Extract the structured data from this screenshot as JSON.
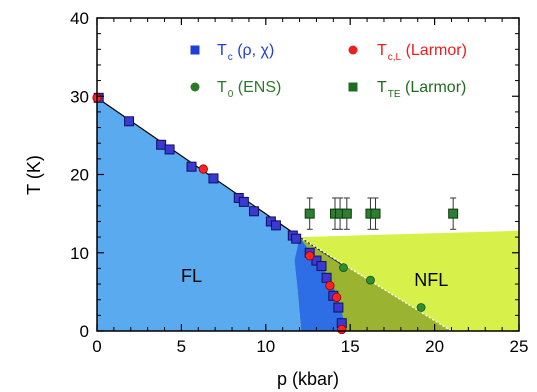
{
  "chart_data": {
    "type": "scatter",
    "xlabel": "p (kbar)",
    "ylabel": "T (K)",
    "xlim": [
      0,
      25
    ],
    "ylim": [
      0,
      40
    ],
    "xticks": [
      "0",
      "5",
      "10",
      "15",
      "20",
      "25"
    ],
    "yticks": [
      "0",
      "10",
      "20",
      "30",
      "40"
    ],
    "grid": false,
    "legend_placement": "top-right",
    "region_labels": {
      "fl": "FL",
      "nfl": "NFL"
    },
    "colors": {
      "fl_region": "#5aaaf0",
      "fl_region_dark": "#2d6ee6",
      "nfl_region": "#d8f04a",
      "nfl_region_dark": "#9ab432",
      "tc_rho_chi": "#3333cc",
      "tc_larmor": "#ff1a1a",
      "t0_ens": "#2a7a2a",
      "tte_larmor": "#1f6b1f"
    },
    "legend": [
      {
        "symbol": "square",
        "color": "#1f3fd8",
        "main": "T",
        "sub": "c",
        "rest": " (ρ, χ)"
      },
      {
        "symbol": "circle",
        "color": "#e82020",
        "main": "T",
        "sub": "c,L",
        "rest": " (Larmor)"
      },
      {
        "symbol": "circle",
        "color": "#2a7a2a",
        "main": "T",
        "sub": "0",
        "rest": " (ENS)"
      },
      {
        "symbol": "square",
        "color": "#1f6b1f",
        "main": "T",
        "sub": "TE",
        "rest": " (Larmor)"
      }
    ],
    "series": [
      {
        "name": "Tc (ρ, χ)",
        "marker": "square",
        "x": [
          0.1,
          1.9,
          3.8,
          4.3,
          5.6,
          6.9,
          8.4,
          8.7,
          9.3,
          10.3,
          10.6,
          11.6,
          11.8,
          12.6,
          13.0,
          13.3,
          13.6,
          14.0,
          14.3,
          14.5
        ],
        "y": [
          29.8,
          26.8,
          23.8,
          23.2,
          21.0,
          19.5,
          17.0,
          16.5,
          15.3,
          14.0,
          13.5,
          12.2,
          11.8,
          10.0,
          9.0,
          8.3,
          6.8,
          4.5,
          3.0,
          1.0
        ]
      },
      {
        "name": "Tc,L (Larmor)",
        "marker": "circle",
        "x": [
          0.0,
          6.3,
          12.6,
          13.8,
          14.2,
          14.5
        ],
        "y": [
          29.8,
          20.7,
          9.6,
          5.8,
          4.3,
          0.2
        ]
      },
      {
        "name": "T0 (ENS)",
        "marker": "circle",
        "x": [
          14.6,
          16.2,
          19.2
        ],
        "y": [
          8.1,
          6.5,
          3.0
        ]
      },
      {
        "name": "TTE (Larmor)",
        "marker": "square",
        "x": [
          12.6,
          14.1,
          14.4,
          14.8,
          16.2,
          16.5,
          21.1
        ],
        "y": [
          15.0,
          15.0,
          15.0,
          15.0,
          15.0,
          15.0,
          15.0
        ],
        "yerr": [
          2.0,
          2.0,
          2.0,
          2.0,
          2.0,
          2.0,
          2.0
        ]
      }
    ],
    "fit_line": {
      "x": [
        0,
        12,
        14.5,
        21.0
      ],
      "y": [
        29.8,
        12.0,
        8.5,
        0.0
      ],
      "style": "solid-then-dotted"
    }
  }
}
